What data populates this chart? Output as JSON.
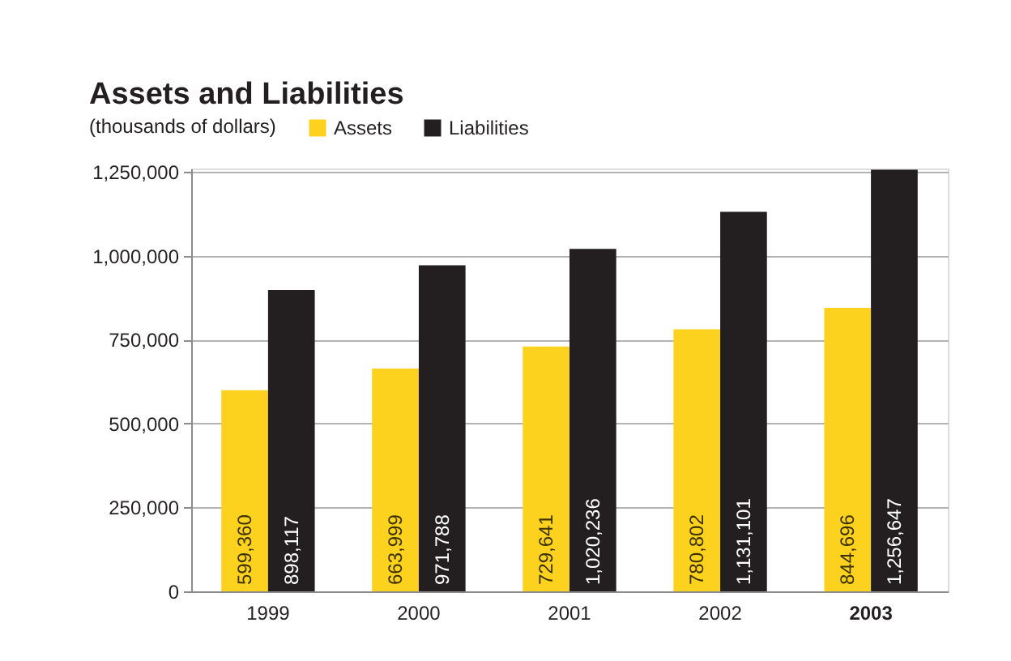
{
  "chart_data": {
    "type": "bar",
    "title": "Assets and Liabilities",
    "subtitle": "(thousands of dollars)",
    "categories": [
      "1999",
      "2000",
      "2001",
      "2002",
      "2003"
    ],
    "series": [
      {
        "name": "Assets",
        "color": "#fdd21f",
        "values": [
          599360,
          663999,
          729641,
          780802,
          844696
        ],
        "value_labels": [
          "599,360",
          "663,999",
          "729,641",
          "780,802",
          "844,696"
        ]
      },
      {
        "name": "Liabilities",
        "color": "#231f20",
        "values": [
          898117,
          971788,
          1020236,
          1131101,
          1256647
        ],
        "value_labels": [
          "898,117",
          "971,788",
          "1,020,236",
          "1,131,101",
          "1,256,647"
        ]
      }
    ],
    "ylim": [
      0,
      1260000
    ],
    "yticks": [
      0,
      {
        "value": 250000,
        "label": "250,000"
      },
      {
        "value": 500000,
        "label": "500,000"
      },
      {
        "value": 750000,
        "label": "750,000"
      },
      {
        "value": 1000000,
        "label": "1,000,000"
      },
      {
        "value": 1250000,
        "label": "1,250,000"
      }
    ],
    "grid": "y",
    "legend": "top left"
  }
}
